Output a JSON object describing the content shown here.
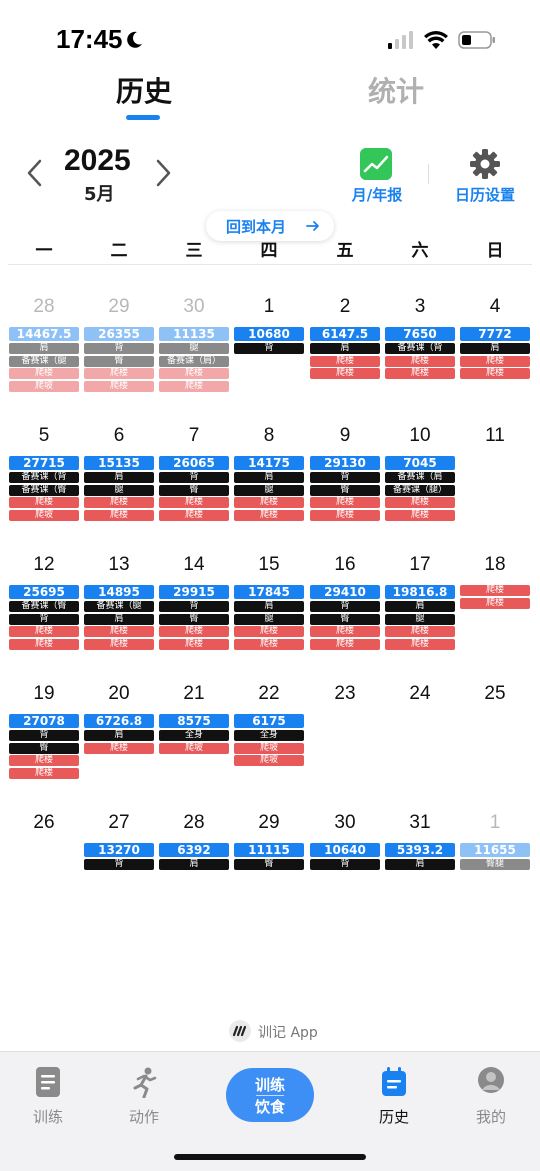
{
  "status": {
    "time": "17:45"
  },
  "tabs": {
    "history": "历史",
    "stats": "统计"
  },
  "header": {
    "year": "2025",
    "month": "5月",
    "report": "月/年报",
    "settings": "日历设置",
    "back_to_month": "回到本月"
  },
  "weekdays": [
    "一",
    "二",
    "三",
    "四",
    "五",
    "六",
    "日"
  ],
  "weeks": [
    [
      {
        "day": "28",
        "other": true,
        "volume": "14467.5",
        "tags": [
          {
            "t": "肩",
            "k": "part"
          },
          {
            "t": "备赛课（腿",
            "k": "part"
          },
          {
            "t": "爬楼",
            "k": "climb"
          },
          {
            "t": "爬坡",
            "k": "climb"
          }
        ]
      },
      {
        "day": "29",
        "other": true,
        "volume": "26355",
        "tags": [
          {
            "t": "背",
            "k": "part"
          },
          {
            "t": "臀",
            "k": "part"
          },
          {
            "t": "爬楼",
            "k": "climb"
          },
          {
            "t": "爬楼",
            "k": "climb"
          }
        ]
      },
      {
        "day": "30",
        "other": true,
        "volume": "11135",
        "tags": [
          {
            "t": "腿",
            "k": "part"
          },
          {
            "t": "备赛课（肩）",
            "k": "part"
          },
          {
            "t": "爬楼",
            "k": "climb"
          },
          {
            "t": "爬楼",
            "k": "climb"
          }
        ]
      },
      {
        "day": "1",
        "volume": "10680",
        "tags": [
          {
            "t": "背",
            "k": "part"
          }
        ]
      },
      {
        "day": "2",
        "volume": "6147.5",
        "tags": [
          {
            "t": "肩",
            "k": "part"
          },
          {
            "t": "爬楼",
            "k": "climb"
          },
          {
            "t": "爬楼",
            "k": "climb"
          }
        ]
      },
      {
        "day": "3",
        "volume": "7650",
        "tags": [
          {
            "t": "备赛课（背",
            "k": "part"
          },
          {
            "t": "爬楼",
            "k": "climb"
          },
          {
            "t": "爬楼",
            "k": "climb"
          }
        ]
      },
      {
        "day": "4",
        "volume": "7772",
        "tags": [
          {
            "t": "肩",
            "k": "part"
          },
          {
            "t": "爬楼",
            "k": "climb"
          },
          {
            "t": "爬楼",
            "k": "climb"
          }
        ]
      }
    ],
    [
      {
        "day": "5",
        "volume": "27715",
        "tags": [
          {
            "t": "备赛课（背",
            "k": "part"
          },
          {
            "t": "备赛课（臀",
            "k": "part"
          },
          {
            "t": "爬楼",
            "k": "climb"
          },
          {
            "t": "爬坡",
            "k": "climb"
          }
        ]
      },
      {
        "day": "6",
        "volume": "15135",
        "tags": [
          {
            "t": "肩",
            "k": "part"
          },
          {
            "t": "腿",
            "k": "part"
          },
          {
            "t": "爬楼",
            "k": "climb"
          },
          {
            "t": "爬楼",
            "k": "climb"
          }
        ]
      },
      {
        "day": "7",
        "volume": "26065",
        "tags": [
          {
            "t": "背",
            "k": "part"
          },
          {
            "t": "臀",
            "k": "part"
          },
          {
            "t": "爬楼",
            "k": "climb"
          },
          {
            "t": "爬楼",
            "k": "climb"
          }
        ]
      },
      {
        "day": "8",
        "volume": "14175",
        "tags": [
          {
            "t": "肩",
            "k": "part"
          },
          {
            "t": "腿",
            "k": "part"
          },
          {
            "t": "爬楼",
            "k": "climb"
          },
          {
            "t": "爬楼",
            "k": "climb"
          }
        ]
      },
      {
        "day": "9",
        "volume": "29130",
        "tags": [
          {
            "t": "背",
            "k": "part"
          },
          {
            "t": "臀",
            "k": "part"
          },
          {
            "t": "爬楼",
            "k": "climb"
          },
          {
            "t": "爬楼",
            "k": "climb"
          }
        ]
      },
      {
        "day": "10",
        "volume": "7045",
        "tags": [
          {
            "t": "备赛课（肩",
            "k": "part"
          },
          {
            "t": "备赛课（腿）",
            "k": "part"
          },
          {
            "t": "爬楼",
            "k": "climb"
          },
          {
            "t": "爬楼",
            "k": "climb"
          }
        ]
      },
      {
        "day": "11",
        "volume": "",
        "tags": []
      }
    ],
    [
      {
        "day": "12",
        "volume": "25695",
        "tags": [
          {
            "t": "备赛课（臀",
            "k": "part"
          },
          {
            "t": "背",
            "k": "part"
          },
          {
            "t": "爬楼",
            "k": "climb"
          },
          {
            "t": "爬楼",
            "k": "climb"
          }
        ]
      },
      {
        "day": "13",
        "volume": "14895",
        "tags": [
          {
            "t": "备赛课（腿",
            "k": "part"
          },
          {
            "t": "肩",
            "k": "part"
          },
          {
            "t": "爬楼",
            "k": "climb"
          },
          {
            "t": "爬楼",
            "k": "climb"
          }
        ]
      },
      {
        "day": "14",
        "volume": "29915",
        "tags": [
          {
            "t": "背",
            "k": "part"
          },
          {
            "t": "臀",
            "k": "part"
          },
          {
            "t": "爬楼",
            "k": "climb"
          },
          {
            "t": "爬楼",
            "k": "climb"
          }
        ]
      },
      {
        "day": "15",
        "volume": "17845",
        "tags": [
          {
            "t": "肩",
            "k": "part"
          },
          {
            "t": "腿",
            "k": "part"
          },
          {
            "t": "爬楼",
            "k": "climb"
          },
          {
            "t": "爬楼",
            "k": "climb"
          }
        ]
      },
      {
        "day": "16",
        "volume": "29410",
        "tags": [
          {
            "t": "背",
            "k": "part"
          },
          {
            "t": "臀",
            "k": "part"
          },
          {
            "t": "爬楼",
            "k": "climb"
          },
          {
            "t": "爬楼",
            "k": "climb"
          }
        ]
      },
      {
        "day": "17",
        "volume": "19816.8",
        "tags": [
          {
            "t": "肩",
            "k": "part"
          },
          {
            "t": "腿",
            "k": "part"
          },
          {
            "t": "爬楼",
            "k": "climb"
          },
          {
            "t": "爬楼",
            "k": "climb"
          }
        ]
      },
      {
        "day": "18",
        "volume": "",
        "tags": [
          {
            "t": "爬楼",
            "k": "climb"
          },
          {
            "t": "爬楼",
            "k": "climb"
          }
        ]
      }
    ],
    [
      {
        "day": "19",
        "volume": "27078",
        "tags": [
          {
            "t": "背",
            "k": "part"
          },
          {
            "t": "臀",
            "k": "part"
          },
          {
            "t": "爬楼",
            "k": "climb"
          },
          {
            "t": "爬楼",
            "k": "climb"
          }
        ]
      },
      {
        "day": "20",
        "volume": "6726.8",
        "tags": [
          {
            "t": "肩",
            "k": "part"
          },
          {
            "t": "爬楼",
            "k": "climb"
          }
        ]
      },
      {
        "day": "21",
        "volume": "8575",
        "tags": [
          {
            "t": "全身",
            "k": "part"
          },
          {
            "t": "爬坡",
            "k": "climb"
          }
        ]
      },
      {
        "day": "22",
        "volume": "6175",
        "tags": [
          {
            "t": "全身",
            "k": "part"
          },
          {
            "t": "爬坡",
            "k": "climb"
          },
          {
            "t": "爬坡",
            "k": "climb"
          }
        ]
      },
      {
        "day": "23",
        "volume": "",
        "tags": []
      },
      {
        "day": "24",
        "volume": "",
        "tags": []
      },
      {
        "day": "25",
        "volume": "",
        "tags": []
      }
    ],
    [
      {
        "day": "26",
        "volume": "",
        "tags": []
      },
      {
        "day": "27",
        "volume": "13270",
        "tags": [
          {
            "t": "背",
            "k": "part"
          }
        ]
      },
      {
        "day": "28",
        "volume": "6392",
        "tags": [
          {
            "t": "肩",
            "k": "part"
          }
        ]
      },
      {
        "day": "29",
        "volume": "11115",
        "tags": [
          {
            "t": "臀",
            "k": "part"
          }
        ]
      },
      {
        "day": "30",
        "volume": "10640",
        "tags": [
          {
            "t": "背",
            "k": "part"
          }
        ]
      },
      {
        "day": "31",
        "volume": "5393.2",
        "tags": [
          {
            "t": "肩",
            "k": "part"
          }
        ]
      },
      {
        "day": "1",
        "other": true,
        "volume": "11655",
        "tags": [
          {
            "t": "臀腿",
            "k": "part"
          }
        ]
      }
    ]
  ],
  "footer": {
    "brand": "训记 App"
  },
  "nav": {
    "train": "训练",
    "moves": "动作",
    "center_line1": "训练",
    "center_line2": "饮食",
    "history": "历史",
    "me": "我的"
  },
  "colors": {
    "accent": "#1a82f0",
    "volume_tag": "#1a82f0",
    "part_tag": "#111111",
    "climb_tag": "#e85a5a",
    "report_icon": "#33c759"
  }
}
